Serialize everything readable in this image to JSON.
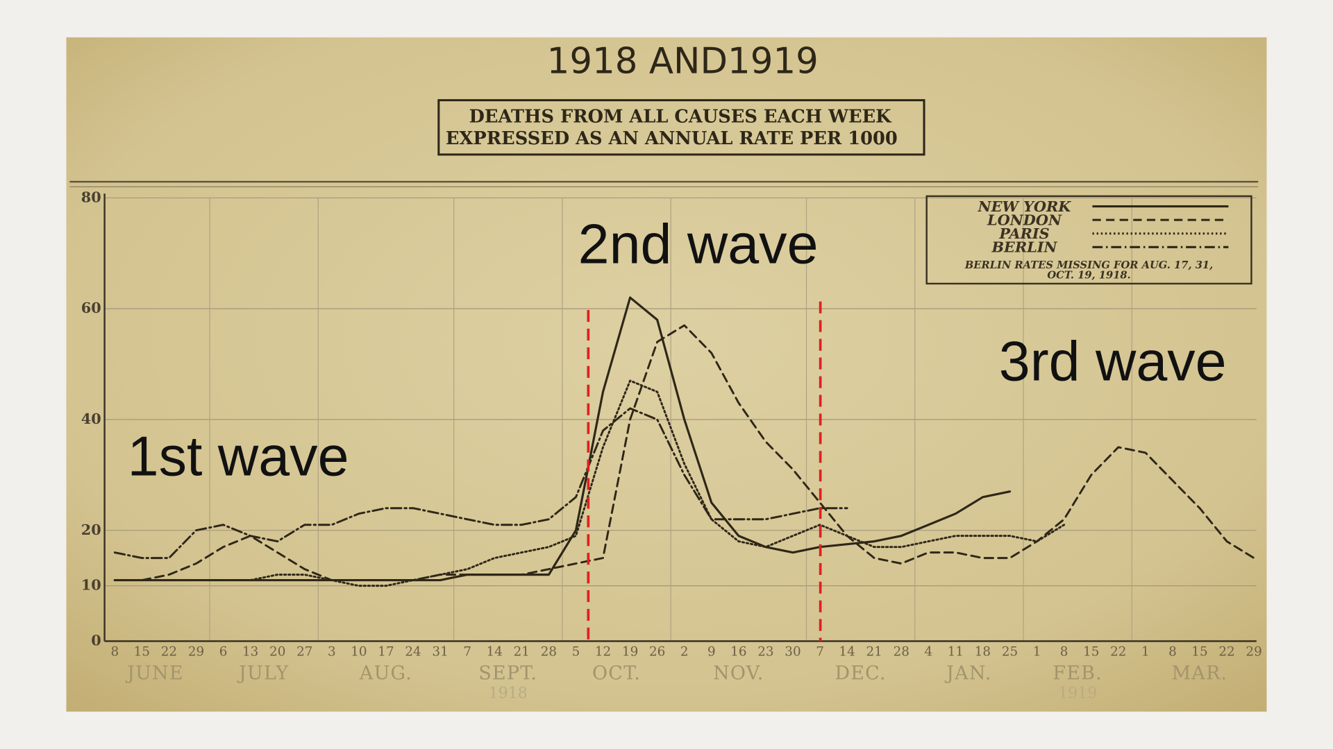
{
  "chart_data": {
    "type": "line",
    "title": "1918 AND1919",
    "subtitle": [
      "DEATHS FROM ALL CAUSES EACH WEEK",
      "EXPRESSED AS AN ANNUAL RATE PER 1000"
    ],
    "categories": [
      "8",
      "15",
      "22",
      "29",
      "6",
      "13",
      "20",
      "27",
      "3",
      "10",
      "17",
      "24",
      "31",
      "7",
      "14",
      "21",
      "28",
      "5",
      "12",
      "19",
      "26",
      "2",
      "9",
      "16",
      "23",
      "30",
      "7",
      "14",
      "21",
      "28",
      "4",
      "11",
      "18",
      "25",
      "1",
      "8",
      "15",
      "22",
      "1",
      "8",
      "15",
      "22",
      "29"
    ],
    "months": [
      "JUNE",
      "JULY",
      "AUG.",
      "SEPT.",
      "OCT.",
      "NOV.",
      "DEC.",
      "JAN.",
      "FEB.",
      "MAR."
    ],
    "years": [
      "1918",
      "1919"
    ],
    "ylim": [
      0,
      80
    ],
    "yticks": [
      0,
      10,
      20,
      40,
      60,
      80
    ],
    "grid": true,
    "series": [
      {
        "name": "NEW YORK",
        "color": "#2e2718",
        "line_style": "solid",
        "values": [
          11,
          11,
          11,
          11,
          11,
          11,
          11,
          11,
          11,
          11,
          11,
          11,
          11,
          12,
          12,
          12,
          12,
          20,
          45,
          62,
          58,
          40,
          25,
          19,
          17,
          16,
          17,
          17.5,
          18,
          19,
          21,
          23,
          26,
          27,
          null,
          null,
          null,
          null,
          null,
          null,
          null,
          null,
          null
        ]
      },
      {
        "name": "LONDON",
        "color": "#2e2718",
        "line_style": "dashed",
        "values": [
          11,
          11,
          12,
          14,
          17,
          19,
          16,
          13,
          11,
          11,
          11,
          11,
          12,
          12,
          12,
          12,
          13,
          14,
          15,
          40,
          54,
          57,
          52,
          43,
          36,
          31,
          25,
          19,
          15,
          14,
          16,
          16,
          15,
          15,
          18,
          22,
          30,
          35,
          34,
          29,
          24,
          18,
          15
        ]
      },
      {
        "name": "PARIS",
        "color": "#2e2718",
        "line_style": "dotted",
        "values": [
          11,
          11,
          11,
          11,
          11,
          11,
          12,
          12,
          11,
          10,
          10,
          11,
          12,
          13,
          15,
          16,
          17,
          19,
          35,
          47,
          45,
          32,
          22,
          18,
          17,
          19,
          21,
          19,
          17,
          17,
          18,
          19,
          19,
          19,
          18,
          21,
          null,
          null,
          null,
          null,
          null,
          null,
          null
        ]
      },
      {
        "name": "BERLIN",
        "color": "#2e2718",
        "line_style": "dashdot",
        "values": [
          16,
          15,
          15,
          20,
          21,
          19,
          18,
          21,
          21,
          23,
          24,
          24,
          23,
          22,
          21,
          21,
          22,
          26,
          38,
          42,
          40,
          30,
          22,
          22,
          22,
          23,
          24,
          24,
          null,
          null,
          null,
          null,
          null,
          null,
          null,
          null,
          null,
          null,
          null,
          null,
          null,
          null,
          null
        ]
      }
    ],
    "legend_note": [
      "BERLIN RATES MISSING FOR AUG. 17, 31,",
      "OCT. 19, 1918."
    ],
    "legend_position": "upper right",
    "annotations": [
      {
        "text": "1st wave"
      },
      {
        "text": "2nd wave"
      },
      {
        "text": "3rd wave"
      }
    ]
  }
}
